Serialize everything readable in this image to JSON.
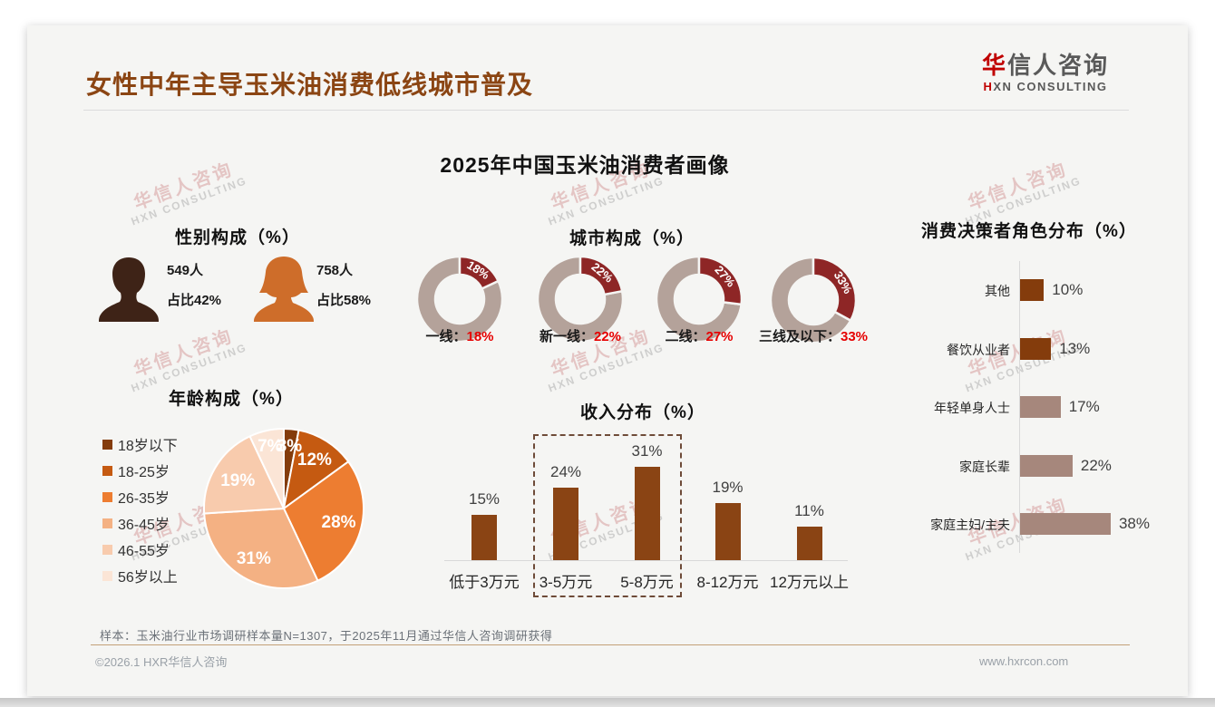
{
  "page": {
    "title": "女性中年主导玉米油消费低线城市普及",
    "logo": {
      "cn_first": "华",
      "cn_rest": "信人咨询",
      "en_first": "H",
      "en_rest": "XN CONSULTING"
    },
    "main_title": "2025年中国玉米油消费者画像",
    "watermark": {
      "line1": "华信人咨询",
      "line2": "HXN CONSULTING"
    },
    "footer": {
      "sample_note": "样本：玉米油行业市场调研样本量N=1307，于2025年11月通过华信人咨询调研获得",
      "copyright": "©2026.1 HXR华信人咨询",
      "website": "www.hxrcon.com"
    }
  },
  "colors": {
    "title_brown": "#8B4513",
    "logo_red": "#C00000",
    "donut_highlight": "#8E2626",
    "donut_rest": "#B4A29A",
    "value_red": "#E60000",
    "income_bar": "#8A4414",
    "decision_dark": "#843C0C",
    "decision_taupe": "#A6877C",
    "axis_gray": "#D9D9D9"
  },
  "chart_data": [
    {
      "type": "pictogram",
      "title": "性别构成（%）",
      "items": [
        {
          "icon": "male",
          "count": "549人",
          "share": "占比42%",
          "color": "#3E2317"
        },
        {
          "icon": "female",
          "count": "758人",
          "share": "占比58%",
          "color": "#CE6D2A"
        }
      ]
    },
    {
      "type": "donut-multiple",
      "title": "城市构成（%）",
      "highlight_color": "#8E2626",
      "rest_color": "#B4A29A",
      "items": [
        {
          "label": "一线：",
          "value": 18
        },
        {
          "label": "新一线：",
          "value": 22
        },
        {
          "label": "二线：",
          "value": 27
        },
        {
          "label": "三线及以下：",
          "value": 33
        }
      ]
    },
    {
      "type": "pie",
      "title": "年龄构成（%）",
      "categories": [
        "18岁以下",
        "18-25岁",
        "26-35岁",
        "36-45岁",
        "46-55岁",
        "56岁以上"
      ],
      "values": [
        3,
        12,
        28,
        31,
        19,
        7
      ],
      "colors": [
        "#843C0C",
        "#C55A11",
        "#ED7D31",
        "#F4B183",
        "#F8CBAD",
        "#FBE5D6"
      ],
      "start_angle_deg": 0,
      "direction": "clockwise",
      "legend_position": "left"
    },
    {
      "type": "bar",
      "title": "收入分布（%）",
      "categories": [
        "低于3万元",
        "3-5万元",
        "5-8万元",
        "8-12万元",
        "12万元以上"
      ],
      "values": [
        15,
        24,
        31,
        19,
        11
      ],
      "bar_color": "#8A4414",
      "highlight_box_categories": [
        "3-5万元",
        "5-8万元"
      ]
    },
    {
      "type": "horizontal-bar",
      "title": "消费决策者角色分布（%）",
      "categories": [
        "其他",
        "餐饮从业者",
        "年轻单身人士",
        "家庭长辈",
        "家庭主妇/主夫"
      ],
      "values": [
        10,
        13,
        17,
        22,
        38
      ],
      "bar_colors": [
        "#843C0C",
        "#843C0C",
        "#A6877C",
        "#A6877C",
        "#A6877C"
      ]
    }
  ]
}
